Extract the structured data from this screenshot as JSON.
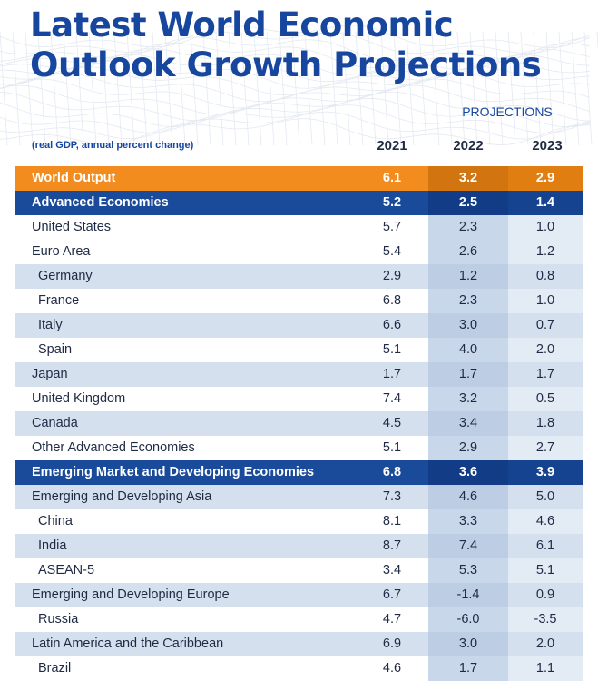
{
  "title_line1": "Latest World Economic",
  "title_line2": "Outlook Growth Projections",
  "projections_label": "PROJECTIONS",
  "unit_note": "(real GDP, annual percent change)",
  "colors": {
    "title": "#17469e",
    "orange": "#f28c1e",
    "blue": "#1a4a9a",
    "stripe": "#d5e0ee"
  },
  "chart_data": {
    "type": "table",
    "columns": [
      "2021",
      "2022",
      "2023"
    ],
    "rows": [
      {
        "name": "World Output",
        "values": [
          "6.1",
          "3.2",
          "2.9"
        ],
        "style": "hl-orange",
        "indent": false
      },
      {
        "name": "Advanced Economies",
        "values": [
          "5.2",
          "2.5",
          "1.4"
        ],
        "style": "hl-blue",
        "indent": false
      },
      {
        "name": "United States",
        "values": [
          "5.7",
          "2.3",
          "1.0"
        ],
        "style": "plain",
        "indent": false
      },
      {
        "name": "Euro Area",
        "values": [
          "5.4",
          "2.6",
          "1.2"
        ],
        "style": "plain",
        "indent": false
      },
      {
        "name": "Germany",
        "values": [
          "2.9",
          "1.2",
          "0.8"
        ],
        "style": "alt",
        "indent": true
      },
      {
        "name": "France",
        "values": [
          "6.8",
          "2.3",
          "1.0"
        ],
        "style": "plain",
        "indent": true
      },
      {
        "name": "Italy",
        "values": [
          "6.6",
          "3.0",
          "0.7"
        ],
        "style": "alt",
        "indent": true
      },
      {
        "name": "Spain",
        "values": [
          "5.1",
          "4.0",
          "2.0"
        ],
        "style": "plain",
        "indent": true
      },
      {
        "name": "Japan",
        "values": [
          "1.7",
          "1.7",
          "1.7"
        ],
        "style": "alt",
        "indent": false
      },
      {
        "name": "United Kingdom",
        "values": [
          "7.4",
          "3.2",
          "0.5"
        ],
        "style": "plain",
        "indent": false
      },
      {
        "name": "Canada",
        "values": [
          "4.5",
          "3.4",
          "1.8"
        ],
        "style": "alt",
        "indent": false
      },
      {
        "name": "Other Advanced Economies",
        "values": [
          "5.1",
          "2.9",
          "2.7"
        ],
        "style": "plain",
        "indent": false
      },
      {
        "name": "Emerging Market and Developing Economies",
        "values": [
          "6.8",
          "3.6",
          "3.9"
        ],
        "style": "hl-blue",
        "indent": false
      },
      {
        "name": "Emerging and Developing Asia",
        "values": [
          "7.3",
          "4.6",
          "5.0"
        ],
        "style": "alt",
        "indent": false
      },
      {
        "name": "China",
        "values": [
          "8.1",
          "3.3",
          "4.6"
        ],
        "style": "plain",
        "indent": true
      },
      {
        "name": "India",
        "values": [
          "8.7",
          "7.4",
          "6.1"
        ],
        "style": "alt",
        "indent": true
      },
      {
        "name": "ASEAN-5",
        "values": [
          "3.4",
          "5.3",
          "5.1"
        ],
        "style": "plain",
        "indent": true
      },
      {
        "name": "Emerging and Developing Europe",
        "values": [
          "6.7",
          "-1.4",
          "0.9"
        ],
        "style": "alt",
        "indent": false
      },
      {
        "name": "Russia",
        "values": [
          "4.7",
          "-6.0",
          "-3.5"
        ],
        "style": "plain",
        "indent": true
      },
      {
        "name": "Latin America and the Caribbean",
        "values": [
          "6.9",
          "3.0",
          "2.0"
        ],
        "style": "alt",
        "indent": false
      },
      {
        "name": "Brazil",
        "values": [
          "4.6",
          "1.7",
          "1.1"
        ],
        "style": "plain",
        "indent": true
      }
    ]
  }
}
